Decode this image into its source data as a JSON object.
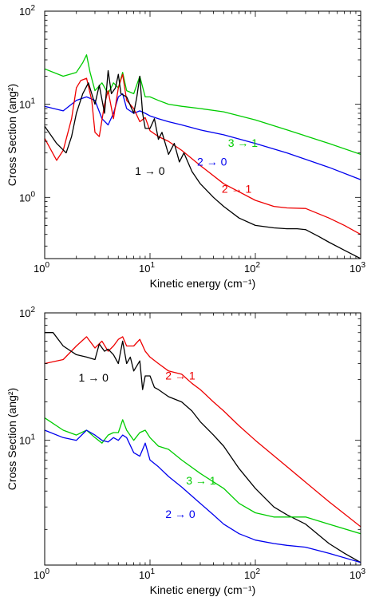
{
  "chart_data": [
    {
      "type": "line",
      "xlabel": "Kinetic energy (cm⁻¹)",
      "ylabel": "Cross Section (ang²)",
      "xscale": "log",
      "yscale": "log",
      "xlim": [
        1,
        1000
      ],
      "ylim": [
        0.22,
        100
      ],
      "xticks": [
        {
          "v": 1,
          "base": "10",
          "exp": "0"
        },
        {
          "v": 10,
          "base": "10",
          "exp": "1"
        },
        {
          "v": 100,
          "base": "10",
          "exp": "2"
        },
        {
          "v": 1000,
          "base": "10",
          "exp": "3"
        }
      ],
      "yticks": [
        {
          "v": 1,
          "base": "10",
          "exp": "0"
        },
        {
          "v": 10,
          "base": "10",
          "exp": "1"
        },
        {
          "v": 100,
          "base": "10",
          "exp": "2"
        }
      ],
      "grid": false,
      "series": [
        {
          "name": "3 → 1",
          "color": "#00cc00",
          "label_at": [
            55,
            3.5
          ],
          "x": [
            1,
            1.5,
            2,
            2.3,
            2.5,
            2.7,
            3,
            3.5,
            4,
            4.5,
            5,
            5.5,
            6,
            7,
            8,
            9,
            10,
            12,
            15,
            20,
            30,
            50,
            100,
            200,
            500,
            1000
          ],
          "y": [
            24,
            20,
            22,
            28,
            34,
            22,
            14,
            17,
            13,
            17,
            15,
            22,
            14,
            13,
            20,
            12,
            12,
            11,
            10,
            9.5,
            9,
            8.3,
            6.8,
            5.3,
            3.8,
            2.9
          ]
        },
        {
          "name": "2 → 0",
          "color": "#0000ee",
          "label_at": [
            28,
            2.2
          ],
          "x": [
            1,
            1.5,
            2,
            2.5,
            3,
            3.5,
            4,
            4.5,
            5,
            5.5,
            6,
            7,
            8,
            9,
            10,
            12,
            15,
            20,
            30,
            50,
            100,
            200,
            500,
            1000
          ],
          "y": [
            9.5,
            8.5,
            11,
            12,
            11,
            7,
            6,
            8,
            12,
            13,
            9,
            8,
            8.5,
            8,
            7.5,
            7,
            6.5,
            6,
            5.3,
            4.7,
            3.8,
            3,
            2.1,
            1.55
          ]
        },
        {
          "name": "2 → 1",
          "color": "#ee0000",
          "label_at": [
            48,
            1.12
          ],
          "x": [
            1,
            1.3,
            1.5,
            1.8,
            2,
            2.2,
            2.5,
            2.8,
            3,
            3.3,
            3.7,
            4,
            4.5,
            5,
            5.5,
            6,
            7,
            8,
            9,
            10,
            12,
            15,
            20,
            30,
            50,
            100,
            150,
            200,
            300,
            500,
            700,
            1000
          ],
          "y": [
            4.3,
            2.5,
            3.2,
            7,
            15,
            18,
            19,
            11,
            5,
            4.5,
            10,
            14,
            7,
            15,
            21,
            11,
            9,
            6.5,
            7.2,
            5.2,
            4.5,
            4,
            3.2,
            2.2,
            1.4,
            0.93,
            0.8,
            0.77,
            0.76,
            0.6,
            0.5,
            0.4
          ]
        },
        {
          "name": "1 → 0",
          "color": "#000000",
          "label_at": [
            7.2,
            1.75
          ],
          "x": [
            1,
            1.3,
            1.6,
            1.8,
            2,
            2.3,
            2.6,
            3,
            3.3,
            3.7,
            4,
            4.3,
            4.7,
            5,
            5.3,
            6,
            7,
            7.5,
            8,
            8.5,
            9,
            10,
            11,
            12,
            13,
            15,
            17,
            19,
            21,
            25,
            30,
            40,
            50,
            70,
            100,
            150,
            200,
            250,
            300,
            400,
            500,
            700,
            1000
          ],
          "y": [
            5.8,
            3.8,
            3,
            4.5,
            8,
            13,
            17,
            10,
            16,
            8,
            23,
            13,
            15,
            21,
            13,
            12,
            8,
            12,
            20,
            8,
            5.5,
            5.5,
            7,
            4.2,
            5,
            2.9,
            3.8,
            2.4,
            3,
            1.9,
            1.4,
            1,
            0.8,
            0.6,
            0.5,
            0.47,
            0.46,
            0.46,
            0.45,
            0.38,
            0.33,
            0.27,
            0.22
          ]
        }
      ]
    },
    {
      "type": "line",
      "xlabel": "Kinetic energy (cm⁻¹)",
      "ylabel": "Cross Section (ang²)",
      "xscale": "log",
      "yscale": "log",
      "xlim": [
        1,
        1000
      ],
      "ylim": [
        1.05,
        100
      ],
      "xticks": [
        {
          "v": 1,
          "base": "10",
          "exp": "0"
        },
        {
          "v": 10,
          "base": "10",
          "exp": "1"
        },
        {
          "v": 100,
          "base": "10",
          "exp": "2"
        },
        {
          "v": 1000,
          "base": "10",
          "exp": "3"
        }
      ],
      "yticks": [
        {
          "v": 10,
          "base": "10",
          "exp": "1"
        },
        {
          "v": 100,
          "base": "10",
          "exp": "2"
        }
      ],
      "grid": false,
      "series": [
        {
          "name": "2 → 1",
          "color": "#ee0000",
          "label_at": [
            14,
            30
          ],
          "x": [
            1,
            1.5,
            2,
            2.5,
            3,
            3.5,
            4,
            4.5,
            5,
            5.5,
            6,
            7,
            8,
            9,
            10,
            12,
            15,
            20,
            25,
            30,
            40,
            50,
            70,
            100,
            200,
            500,
            1000
          ],
          "y": [
            40,
            43,
            55,
            65,
            53,
            60,
            50,
            55,
            62,
            65,
            55,
            55,
            62,
            50,
            45,
            40,
            35,
            33,
            28,
            25,
            20,
            17,
            13,
            10,
            6.2,
            3.3,
            2.1
          ]
        },
        {
          "name": "1 → 0",
          "color": "#000000",
          "label_at": [
            2.1,
            29
          ],
          "x": [
            1,
            1.2,
            1.5,
            2,
            2.5,
            3,
            3.3,
            3.7,
            4,
            4.5,
            5,
            5.5,
            6,
            6.5,
            7,
            8,
            8.5,
            9,
            10,
            11,
            12,
            15,
            20,
            25,
            30,
            40,
            50,
            70,
            100,
            150,
            200,
            300,
            500,
            700,
            1000
          ],
          "y": [
            70,
            70,
            55,
            47,
            45,
            43,
            57,
            50,
            52,
            47,
            40,
            60,
            40,
            45,
            35,
            42,
            25,
            32,
            32,
            26,
            25,
            22,
            20,
            17,
            14,
            11,
            9,
            6,
            4.2,
            3,
            2.6,
            2.2,
            1.55,
            1.3,
            1.1
          ]
        },
        {
          "name": "3 → 1",
          "color": "#00cc00",
          "label_at": [
            22,
            4.5
          ],
          "x": [
            1,
            1.5,
            2,
            2.5,
            3,
            3.5,
            4,
            4.5,
            5,
            5.5,
            6,
            7,
            8,
            9,
            10,
            12,
            15,
            20,
            30,
            50,
            70,
            100,
            150,
            200,
            300,
            500,
            1000
          ],
          "y": [
            15,
            12,
            11,
            12,
            10.5,
            9.5,
            11,
            11.5,
            11.5,
            14.5,
            12,
            10,
            11.5,
            12,
            10.5,
            9,
            8.5,
            7,
            5.5,
            4.2,
            3.2,
            2.7,
            2.5,
            2.5,
            2.5,
            2.2,
            1.85
          ]
        },
        {
          "name": "2 → 0",
          "color": "#0000ee",
          "label_at": [
            14,
            2.45
          ],
          "x": [
            1,
            1.5,
            2,
            2.5,
            3,
            3.5,
            4,
            4.5,
            5,
            5.5,
            6,
            7,
            8,
            9,
            10,
            12,
            15,
            20,
            30,
            40,
            50,
            70,
            100,
            150,
            200,
            300,
            500,
            1000
          ],
          "y": [
            12,
            10.5,
            10,
            12,
            11,
            10,
            9.7,
            10.5,
            10,
            11,
            10.5,
            8,
            7.5,
            9.5,
            7,
            6.2,
            5.2,
            4.3,
            3.2,
            2.6,
            2.2,
            1.85,
            1.65,
            1.55,
            1.5,
            1.45,
            1.3,
            1.1
          ]
        }
      ]
    }
  ]
}
